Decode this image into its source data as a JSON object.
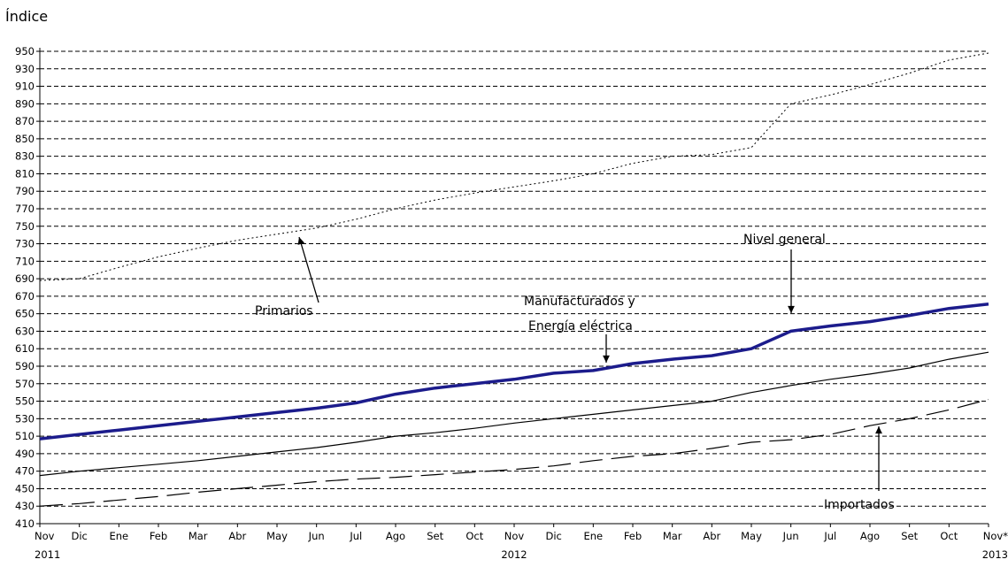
{
  "chart_data": {
    "type": "line",
    "ylabel": "Índice",
    "ylim": [
      410,
      950
    ],
    "yticks": [
      410,
      430,
      450,
      470,
      490,
      510,
      530,
      550,
      570,
      590,
      610,
      630,
      650,
      670,
      690,
      710,
      730,
      750,
      770,
      790,
      810,
      830,
      850,
      870,
      890,
      910,
      930,
      950
    ],
    "grid": true,
    "x": [
      "Nov",
      "Dic",
      "Ene",
      "Feb",
      "Mar",
      "Abr",
      "May",
      "Jun",
      "Jul",
      "Ago",
      "Set",
      "Oct",
      "Nov",
      "Dic",
      "Ene",
      "Feb",
      "Mar",
      "Abr",
      "May",
      "Jun",
      "Jul",
      "Ago",
      "Set",
      "Oct",
      "Nov"
    ],
    "xtick_labels": [
      "Nov",
      "Dic",
      "Ene",
      "Feb",
      "Mar",
      "Abr",
      "May",
      "Jun",
      "Jul",
      "Ago",
      "Set",
      "Oct",
      "Nov",
      "Dic",
      "Ene",
      "Feb",
      "Mar",
      "Abr",
      "May",
      "Jun",
      "Jul",
      "Ago",
      "Set",
      "Oct",
      "Nov*"
    ],
    "year_labels": [
      {
        "label": "2011",
        "index": 0
      },
      {
        "label": "2012",
        "index": 12
      },
      {
        "label": "2013",
        "index": 24
      }
    ],
    "series": [
      {
        "name": "Primarios",
        "style": "dotted",
        "color": "#000000",
        "values": [
          688,
          690,
          703,
          715,
          725,
          734,
          741,
          748,
          758,
          770,
          780,
          788,
          795,
          802,
          810,
          822,
          830,
          832,
          840,
          890,
          900,
          912,
          925,
          940,
          948
        ]
      },
      {
        "name": "Nivel general",
        "style": "thick",
        "color": "#1c1c8c",
        "values": [
          507,
          512,
          517,
          522,
          527,
          532,
          537,
          542,
          548,
          558,
          565,
          570,
          575,
          582,
          585,
          593,
          598,
          602,
          610,
          630,
          636,
          641,
          648,
          656,
          661
        ]
      },
      {
        "name": "Manufacturados y Energía eléctrica",
        "style": "thin",
        "color": "#000000",
        "values": [
          465,
          470,
          474,
          478,
          482,
          487,
          492,
          497,
          503,
          510,
          514,
          519,
          525,
          530,
          535,
          540,
          545,
          550,
          560,
          568,
          575,
          581,
          588,
          598,
          606
        ]
      },
      {
        "name": "Importados",
        "style": "dashed",
        "color": "#000000",
        "values": [
          430,
          433,
          437,
          441,
          446,
          450,
          454,
          458,
          461,
          463,
          466,
          469,
          472,
          476,
          482,
          487,
          490,
          496,
          503,
          506,
          512,
          522,
          530,
          540,
          552
        ]
      }
    ],
    "annotations": [
      {
        "text": "Primarios",
        "series": 0,
        "index": 7
      },
      {
        "text": "Nivel general",
        "series": 1,
        "index": 19
      },
      {
        "text": "Manufacturados y",
        "series": 2,
        "index": 15
      },
      {
        "text": "Energía eléctrica",
        "series": 2,
        "index": 15
      },
      {
        "text": "Importados",
        "series": 3,
        "index": 22
      }
    ]
  }
}
